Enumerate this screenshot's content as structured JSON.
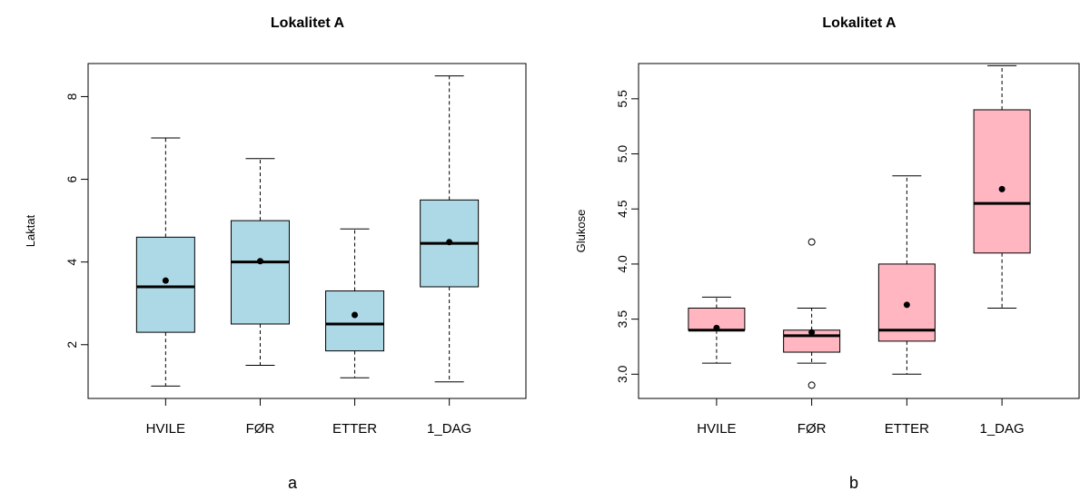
{
  "chart_data": [
    {
      "type": "boxplot",
      "panel_label": "a",
      "title": "Lokalitet A",
      "xlabel": "",
      "ylabel": "Laktat",
      "ylim": [
        0.7,
        8.8
      ],
      "yticks": [
        2,
        4,
        6,
        8
      ],
      "box_color": "#add8e6",
      "categories": [
        "HVILE",
        "FØR",
        "ETTER",
        "1_DAG"
      ],
      "boxes": [
        {
          "whisker_low": 1.0,
          "q1": 2.3,
          "median": 3.4,
          "q3": 4.6,
          "whisker_high": 7.0,
          "mean": 3.55,
          "outliers": []
        },
        {
          "whisker_low": 1.5,
          "q1": 2.5,
          "median": 4.0,
          "q3": 5.0,
          "whisker_high": 6.5,
          "mean": 4.02,
          "outliers": []
        },
        {
          "whisker_low": 1.2,
          "q1": 1.85,
          "median": 2.5,
          "q3": 3.3,
          "whisker_high": 4.8,
          "mean": 2.72,
          "outliers": []
        },
        {
          "whisker_low": 1.1,
          "q1": 3.4,
          "median": 4.45,
          "q3": 5.5,
          "whisker_high": 8.5,
          "mean": 4.48,
          "outliers": []
        }
      ]
    },
    {
      "type": "boxplot",
      "panel_label": "b",
      "title": "Lokalitet A",
      "xlabel": "",
      "ylabel": "Glukose",
      "ylim": [
        2.78,
        5.82
      ],
      "yticks": [
        3.0,
        3.5,
        4.0,
        4.5,
        5.0,
        5.5
      ],
      "ytick_labels": [
        "3.0",
        "3.5",
        "4.0",
        "4.5",
        "5.0",
        "5.5"
      ],
      "box_color": "#ffb6c1",
      "categories": [
        "HVILE",
        "FØR",
        "ETTER",
        "1_DAG"
      ],
      "boxes": [
        {
          "whisker_low": 3.1,
          "q1": 3.4,
          "median": 3.4,
          "q3": 3.6,
          "whisker_high": 3.7,
          "mean": 3.42,
          "outliers": []
        },
        {
          "whisker_low": 3.1,
          "q1": 3.2,
          "median": 3.35,
          "q3": 3.4,
          "whisker_high": 3.6,
          "mean": 3.38,
          "outliers": [
            4.2,
            2.9
          ]
        },
        {
          "whisker_low": 3.0,
          "q1": 3.3,
          "median": 3.4,
          "q3": 4.0,
          "whisker_high": 4.8,
          "mean": 3.63,
          "outliers": []
        },
        {
          "whisker_low": 3.6,
          "q1": 4.1,
          "median": 4.55,
          "q3": 5.4,
          "whisker_high": 5.8,
          "mean": 4.68,
          "outliers": []
        }
      ]
    }
  ]
}
